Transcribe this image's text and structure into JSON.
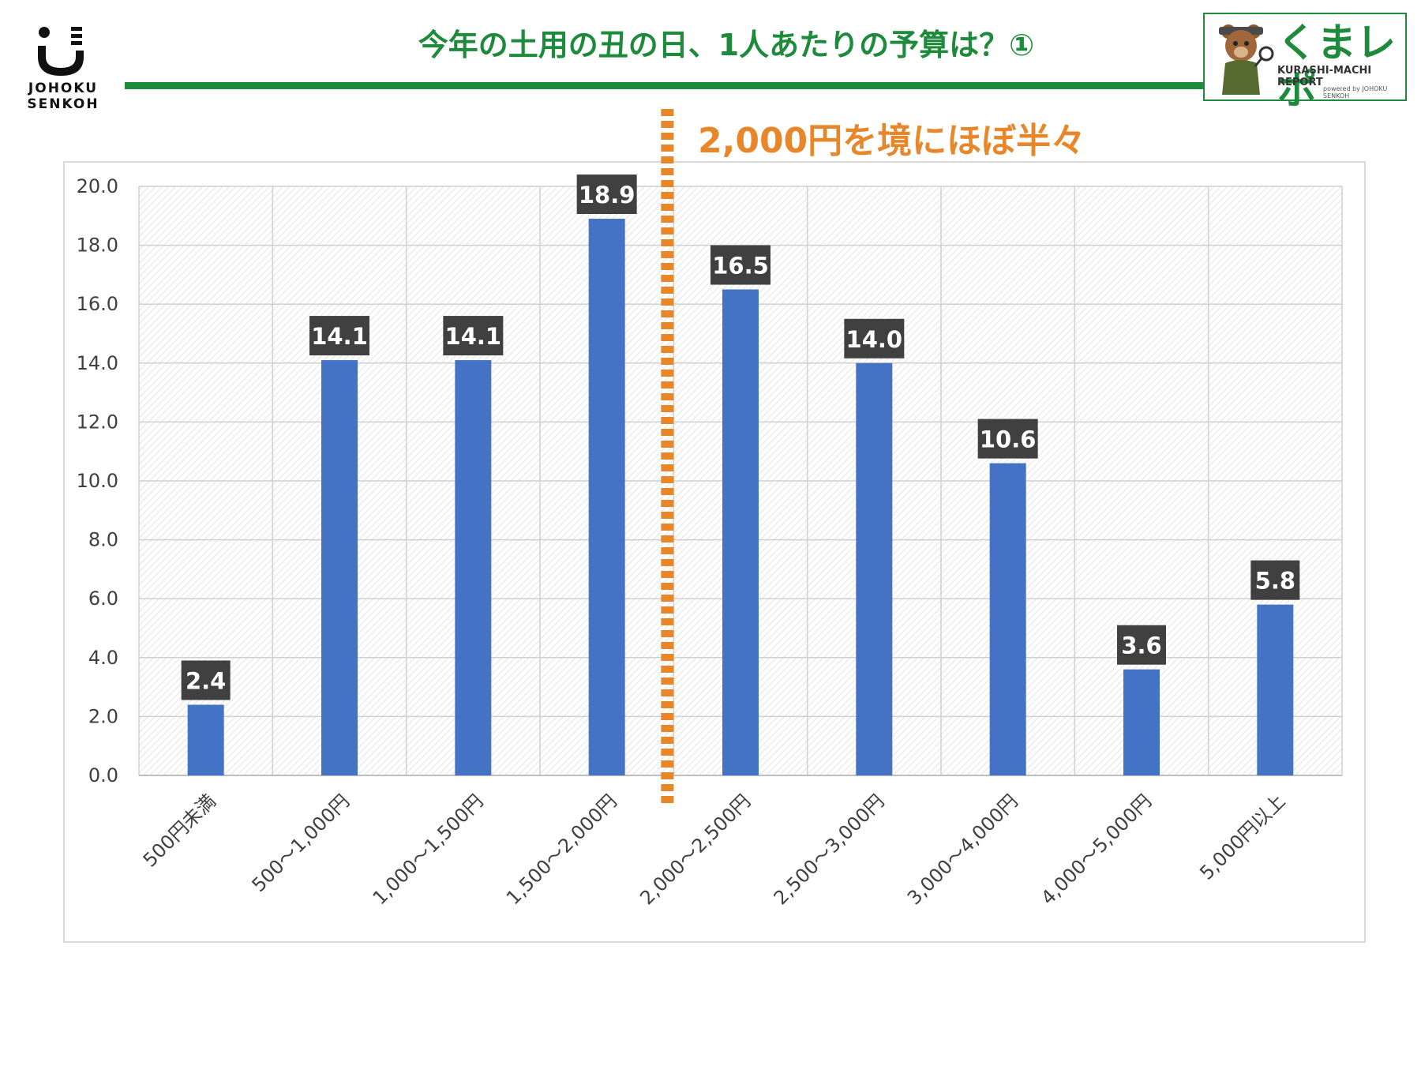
{
  "header": {
    "title": "今年の土用の丑の日、1人あたりの予算は？①",
    "brand_left": {
      "line1": "JOHOKU",
      "line2": "SENKOH"
    },
    "brand_right": {
      "name": "くまレポ",
      "subtitle": "KURASHI-MACHI REPORT",
      "powered": "powered by JOHOKU SENKOH"
    }
  },
  "annotation": {
    "text": "2,000円を境にほぼ半々",
    "color": "#e8872a"
  },
  "colors": {
    "accent": "#1e8a3c",
    "bar": "#4472c4",
    "label_bg": "#404040"
  },
  "chart_data": {
    "type": "bar",
    "categories": [
      "500円未満",
      "500〜1,000円",
      "1,000〜1,500円",
      "1,500〜2,000円",
      "2,000〜2,500円",
      "2,500〜3,000円",
      "3,000〜4,000円",
      "4,000〜5,000円",
      "5,000円以上"
    ],
    "values": [
      2.4,
      14.1,
      14.1,
      18.9,
      16.5,
      14.0,
      10.6,
      3.6,
      5.8
    ],
    "ylim": [
      0,
      20
    ],
    "yticks": [
      0,
      2,
      4,
      6,
      8,
      10,
      12,
      14,
      16,
      18,
      20
    ],
    "grid": true,
    "divider_after_category": 3
  }
}
